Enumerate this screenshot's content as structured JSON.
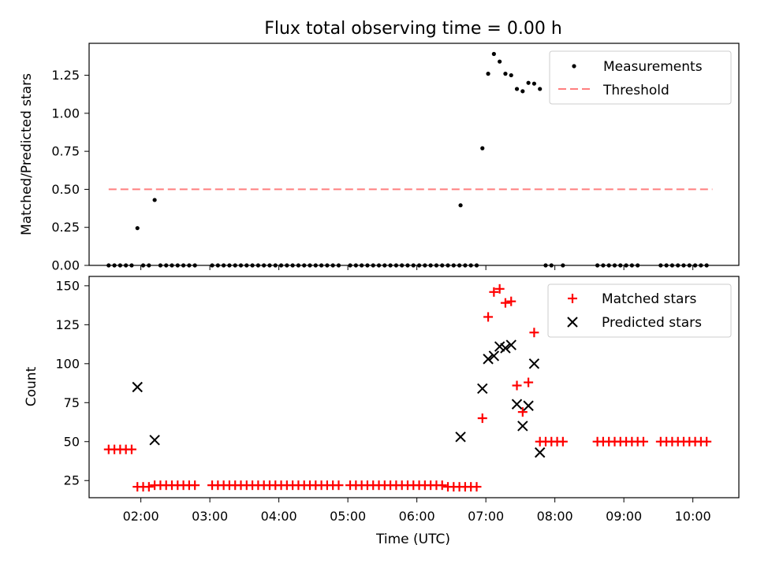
{
  "chart_data": [
    {
      "type": "scatter",
      "title": "Flux total observing time = 0.00 h",
      "xlabel": "",
      "ylabel": "Matched/Predicted stars",
      "ylim": [
        0,
        1.46
      ],
      "xlim": [
        "01:15",
        "10:40"
      ],
      "ytick_labels": [
        "0.00",
        "0.25",
        "0.50",
        "0.75",
        "1.00",
        "1.25"
      ],
      "ytick_values": [
        0,
        0.25,
        0.5,
        0.75,
        1.0,
        1.25
      ],
      "grid": false,
      "legend_position": "upper right",
      "series": [
        {
          "name": "Measurements",
          "marker": "dot",
          "color": "#000000",
          "points": [
            [
              "01:32",
              0
            ],
            [
              "01:37",
              0
            ],
            [
              "01:42",
              0
            ],
            [
              "01:47",
              0
            ],
            [
              "01:52",
              0
            ],
            [
              "01:57",
              0.245
            ],
            [
              "02:02",
              0
            ],
            [
              "02:07",
              0
            ],
            [
              "02:12",
              0.43
            ],
            [
              "02:17",
              0
            ],
            [
              "02:22",
              0
            ],
            [
              "02:27",
              0
            ],
            [
              "02:32",
              0
            ],
            [
              "02:37",
              0
            ],
            [
              "02:42",
              0
            ],
            [
              "02:47",
              0
            ],
            [
              "03:02",
              0
            ],
            [
              "03:07",
              0
            ],
            [
              "03:12",
              0
            ],
            [
              "03:17",
              0
            ],
            [
              "03:22",
              0
            ],
            [
              "03:27",
              0
            ],
            [
              "03:32",
              0
            ],
            [
              "03:37",
              0
            ],
            [
              "03:42",
              0
            ],
            [
              "03:47",
              0
            ],
            [
              "03:52",
              0
            ],
            [
              "03:57",
              0
            ],
            [
              "04:02",
              0
            ],
            [
              "04:07",
              0
            ],
            [
              "04:12",
              0
            ],
            [
              "04:17",
              0
            ],
            [
              "04:22",
              0
            ],
            [
              "04:27",
              0
            ],
            [
              "04:32",
              0
            ],
            [
              "04:37",
              0
            ],
            [
              "04:42",
              0
            ],
            [
              "04:47",
              0
            ],
            [
              "04:52",
              0
            ],
            [
              "05:02",
              0
            ],
            [
              "05:07",
              0
            ],
            [
              "05:12",
              0
            ],
            [
              "05:17",
              0
            ],
            [
              "05:22",
              0
            ],
            [
              "05:27",
              0
            ],
            [
              "05:32",
              0
            ],
            [
              "05:37",
              0
            ],
            [
              "05:42",
              0
            ],
            [
              "05:47",
              0
            ],
            [
              "05:52",
              0
            ],
            [
              "05:57",
              0
            ],
            [
              "06:02",
              0
            ],
            [
              "06:07",
              0
            ],
            [
              "06:12",
              0
            ],
            [
              "06:17",
              0
            ],
            [
              "06:22",
              0
            ],
            [
              "06:27",
              0
            ],
            [
              "06:32",
              0
            ],
            [
              "06:37",
              0
            ],
            [
              "06:38",
              0.395
            ],
            [
              "06:42",
              0
            ],
            [
              "06:47",
              0
            ],
            [
              "06:52",
              0
            ],
            [
              "06:57",
              0.77
            ],
            [
              "07:02",
              1.26
            ],
            [
              "07:07",
              1.39
            ],
            [
              "07:12",
              1.34
            ],
            [
              "07:17",
              1.26
            ],
            [
              "07:22",
              1.25
            ],
            [
              "07:27",
              1.16
            ],
            [
              "07:32",
              1.145
            ],
            [
              "07:37",
              1.2
            ],
            [
              "07:42",
              1.195
            ],
            [
              "07:47",
              1.16
            ],
            [
              "07:52",
              0
            ],
            [
              "07:57",
              0
            ],
            [
              "08:07",
              0
            ],
            [
              "08:37",
              0
            ],
            [
              "08:42",
              0
            ],
            [
              "08:47",
              0
            ],
            [
              "08:52",
              0
            ],
            [
              "08:57",
              0
            ],
            [
              "09:02",
              0
            ],
            [
              "09:07",
              0
            ],
            [
              "09:12",
              0
            ],
            [
              "09:32",
              0
            ],
            [
              "09:37",
              0
            ],
            [
              "09:42",
              0
            ],
            [
              "09:47",
              0
            ],
            [
              "09:52",
              0
            ],
            [
              "09:57",
              0
            ],
            [
              "10:02",
              0
            ],
            [
              "10:07",
              0
            ],
            [
              "10:12",
              0
            ]
          ]
        },
        {
          "name": "Threshold",
          "line_style": "dashed",
          "color": "#ff7f7f",
          "points": [
            [
              "01:32",
              0.5
            ],
            [
              "10:17",
              0.5
            ]
          ]
        }
      ]
    },
    {
      "type": "scatter",
      "title": "",
      "xlabel": "Time (UTC)",
      "ylabel": "Count",
      "ylim": [
        14,
        156
      ],
      "xlim": [
        "01:15",
        "10:40"
      ],
      "ytick_labels": [
        "25",
        "50",
        "75",
        "100",
        "125",
        "150"
      ],
      "ytick_values": [
        25,
        50,
        75,
        100,
        125,
        150
      ],
      "xtick_labels": [
        "02:00",
        "03:00",
        "04:00",
        "05:00",
        "06:00",
        "07:00",
        "08:00",
        "09:00",
        "10:00"
      ],
      "xtick_values": [
        "02:00",
        "03:00",
        "04:00",
        "05:00",
        "06:00",
        "07:00",
        "08:00",
        "09:00",
        "10:00"
      ],
      "grid": false,
      "legend_position": "upper right",
      "series": [
        {
          "name": "Matched stars",
          "marker": "plus",
          "color": "#ff0000",
          "points": [
            [
              "01:32",
              45
            ],
            [
              "01:37",
              45
            ],
            [
              "01:42",
              45
            ],
            [
              "01:47",
              45
            ],
            [
              "01:52",
              45
            ],
            [
              "01:57",
              21
            ],
            [
              "02:02",
              21
            ],
            [
              "02:07",
              21
            ],
            [
              "02:12",
              22
            ],
            [
              "02:17",
              22
            ],
            [
              "02:22",
              22
            ],
            [
              "02:27",
              22
            ],
            [
              "02:32",
              22
            ],
            [
              "02:37",
              22
            ],
            [
              "02:42",
              22
            ],
            [
              "02:47",
              22
            ],
            [
              "03:02",
              22
            ],
            [
              "03:07",
              22
            ],
            [
              "03:12",
              22
            ],
            [
              "03:17",
              22
            ],
            [
              "03:22",
              22
            ],
            [
              "03:27",
              22
            ],
            [
              "03:32",
              22
            ],
            [
              "03:37",
              22
            ],
            [
              "03:42",
              22
            ],
            [
              "03:47",
              22
            ],
            [
              "03:52",
              22
            ],
            [
              "03:57",
              22
            ],
            [
              "04:02",
              22
            ],
            [
              "04:07",
              22
            ],
            [
              "04:12",
              22
            ],
            [
              "04:17",
              22
            ],
            [
              "04:22",
              22
            ],
            [
              "04:27",
              22
            ],
            [
              "04:32",
              22
            ],
            [
              "04:37",
              22
            ],
            [
              "04:42",
              22
            ],
            [
              "04:47",
              22
            ],
            [
              "04:52",
              22
            ],
            [
              "05:02",
              22
            ],
            [
              "05:07",
              22
            ],
            [
              "05:12",
              22
            ],
            [
              "05:17",
              22
            ],
            [
              "05:22",
              22
            ],
            [
              "05:27",
              22
            ],
            [
              "05:32",
              22
            ],
            [
              "05:37",
              22
            ],
            [
              "05:42",
              22
            ],
            [
              "05:47",
              22
            ],
            [
              "05:52",
              22
            ],
            [
              "05:57",
              22
            ],
            [
              "06:02",
              22
            ],
            [
              "06:07",
              22
            ],
            [
              "06:12",
              22
            ],
            [
              "06:17",
              22
            ],
            [
              "06:22",
              22
            ],
            [
              "06:27",
              21
            ],
            [
              "06:32",
              21
            ],
            [
              "06:37",
              21
            ],
            [
              "06:42",
              21
            ],
            [
              "06:47",
              21
            ],
            [
              "06:52",
              21
            ],
            [
              "06:57",
              65
            ],
            [
              "07:02",
              130
            ],
            [
              "07:07",
              146
            ],
            [
              "07:12",
              148
            ],
            [
              "07:17",
              139
            ],
            [
              "07:22",
              140
            ],
            [
              "07:27",
              86
            ],
            [
              "07:32",
              69
            ],
            [
              "07:37",
              88
            ],
            [
              "07:42",
              120
            ],
            [
              "07:47",
              50
            ],
            [
              "07:52",
              50
            ],
            [
              "07:57",
              50
            ],
            [
              "08:02",
              50
            ],
            [
              "08:07",
              50
            ],
            [
              "08:37",
              50
            ],
            [
              "08:42",
              50
            ],
            [
              "08:47",
              50
            ],
            [
              "08:52",
              50
            ],
            [
              "08:57",
              50
            ],
            [
              "09:02",
              50
            ],
            [
              "09:07",
              50
            ],
            [
              "09:12",
              50
            ],
            [
              "09:17",
              50
            ],
            [
              "09:32",
              50
            ],
            [
              "09:37",
              50
            ],
            [
              "09:42",
              50
            ],
            [
              "09:47",
              50
            ],
            [
              "09:52",
              50
            ],
            [
              "09:57",
              50
            ],
            [
              "10:02",
              50
            ],
            [
              "10:07",
              50
            ],
            [
              "10:12",
              50
            ]
          ]
        },
        {
          "name": "Predicted stars",
          "marker": "x",
          "color": "#000000",
          "points": [
            [
              "01:57",
              85
            ],
            [
              "02:12",
              51
            ],
            [
              "06:38",
              53
            ],
            [
              "06:57",
              84
            ],
            [
              "07:02",
              103
            ],
            [
              "07:07",
              105
            ],
            [
              "07:12",
              111
            ],
            [
              "07:17",
              110
            ],
            [
              "07:22",
              112
            ],
            [
              "07:27",
              74
            ],
            [
              "07:32",
              60
            ],
            [
              "07:37",
              73
            ],
            [
              "07:42",
              100
            ],
            [
              "07:47",
              43
            ]
          ]
        }
      ]
    }
  ]
}
